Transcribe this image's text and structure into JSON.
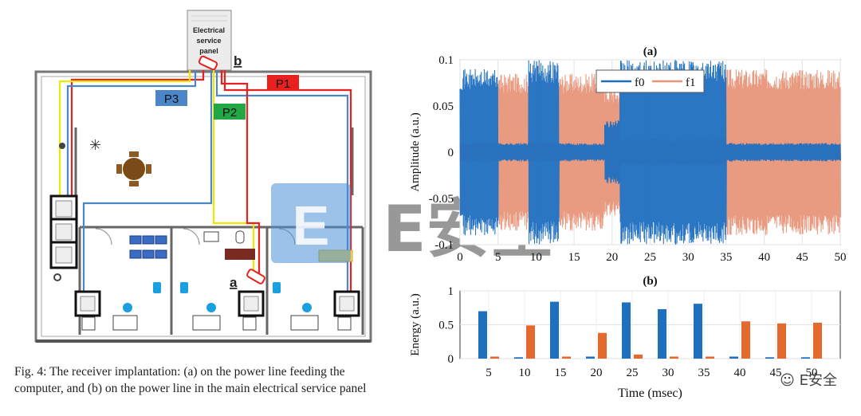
{
  "figure": {
    "caption": "Fig. 4: The receiver implantation: (a) on the power line feeding the computer, and (b) on the power line in the main electrical service panel",
    "panel_label_line1": "Electrical",
    "panel_label_line2": "service",
    "panel_label_line3": "panel",
    "marker_a": "a",
    "marker_b": "b",
    "line_labels": {
      "p1": "P1",
      "p2": "P2",
      "p3": "P3"
    },
    "colors": {
      "p1": "#e8201e",
      "p2": "#22a744",
      "p3": "#4a86c8",
      "wire_yellow": "#f2e600"
    }
  },
  "watermark": {
    "text_logo": "E安全",
    "wechat": "E安全"
  },
  "chart_data": [
    {
      "type": "line",
      "title": "(a)",
      "ylabel": "Amplitude (a.u.)",
      "xlim": [
        0,
        50
      ],
      "ylim": [
        -0.1,
        0.1
      ],
      "xticks": [
        "0",
        "5",
        "10",
        "15",
        "20",
        "25",
        "30",
        "35",
        "40",
        "45",
        "50"
      ],
      "yticks": [
        "0.1",
        "0.05",
        "0",
        "-0.05",
        "-0.1"
      ],
      "grid": true,
      "legend": {
        "placement": "top",
        "entries": [
          "f0",
          "f1"
        ]
      },
      "series": [
        {
          "name": "f0",
          "color": "#1f6fbf",
          "segments": [
            [
              0,
              5,
              0.09
            ],
            [
              5,
              9,
              0.01
            ],
            [
              9,
              13,
              0.1
            ],
            [
              13,
              19,
              0.01
            ],
            [
              19,
              21,
              0.035
            ],
            [
              21,
              35,
              0.1
            ],
            [
              35,
              50,
              0.01
            ]
          ]
        },
        {
          "name": "f1",
          "color": "#e8967a",
          "segments": [
            [
              0,
              5,
              0.01
            ],
            [
              5,
              9,
              0.085
            ],
            [
              9,
              13,
              0.01
            ],
            [
              13,
              19,
              0.085
            ],
            [
              19,
              21,
              0.07
            ],
            [
              21,
              35,
              0.015
            ],
            [
              35,
              50,
              0.09
            ]
          ]
        }
      ]
    },
    {
      "type": "bar",
      "title": "(b)",
      "xlabel": "Time (msec)",
      "ylabel": "Energy (a.u.)",
      "ylim": [
        0,
        1
      ],
      "yticks": [
        "1",
        "0.5",
        "0"
      ],
      "categories": [
        "5",
        "10",
        "15",
        "20",
        "25",
        "30",
        "35",
        "40",
        "45",
        "50"
      ],
      "grid": true,
      "series": [
        {
          "color": "#1f6fbf",
          "values": [
            0.7,
            0.02,
            0.84,
            0.03,
            0.83,
            0.73,
            0.81,
            0.03,
            0.02,
            0.02
          ]
        },
        {
          "color": "#e36a2c",
          "values": [
            0.03,
            0.49,
            0.03,
            0.38,
            0.06,
            0.03,
            0.03,
            0.55,
            0.52,
            0.53
          ]
        }
      ]
    }
  ]
}
